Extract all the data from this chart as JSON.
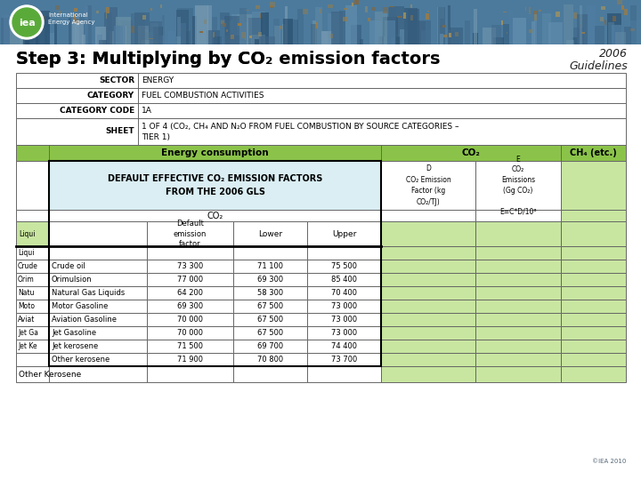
{
  "title_part1": "Step 3: Multiplying by CO",
  "title_co2_sub": "2",
  "title_part2": " emission factors",
  "guidelines_line1": "2006",
  "guidelines_line2": "Guidelines",
  "sector_label": "SECTOR",
  "sector_value": "ENERGY",
  "category_label": "CATEGORY",
  "category_value": "FUEL COMBUSTION ACTIVITIES",
  "cat_code_label": "CATEGORY CODE",
  "cat_code_value": "1A",
  "sheet_label": "SHEET",
  "sheet_value_1": "1 OF 4 (CO₂, CH₄ AND N₂O FROM FUEL COMBUSTION BY SOURCE CATEGORIES –",
  "sheet_value_2": "TIER 1)",
  "green_header_bg": "#8bc34a",
  "light_green": "#c8e6a0",
  "default_box_bg": "#daeef3",
  "col_energy": "Energy consumption",
  "col_co2": "CO₂",
  "col_ch4": "CH₄ (etc.)",
  "col_D_lines": [
    "D",
    "CO₂ Emission",
    "Factor (kg",
    "CO₂/TJ)"
  ],
  "col_E_lines": [
    "E",
    "CO₂",
    "Emissions",
    "(Gg CO₂)",
    "",
    "E=C*D/10⁶"
  ],
  "default_box_lines": [
    "DEFAULT EFFECTIVE CO₂ EMISSION FACTORS",
    "FROM THE 2006 GLS"
  ],
  "co2_sub_header": "CO₂",
  "sub_col_headers": [
    "Default\nemission\nfactor",
    "Lower",
    "Upper"
  ],
  "row_left_labels": [
    "Liqui",
    "Crude",
    "Orim",
    "Natu",
    "Moto",
    "Aviat",
    "Jet Ga",
    "Jet Ke",
    ""
  ],
  "row_sub_labels": [
    "",
    "Crude oil",
    "Orimulsion",
    "Natural Gas Liquids",
    "Motor Gasoline",
    "Aviation Gasoline",
    "Jet Gasoline",
    "Jet kerosene",
    "Other kerosene"
  ],
  "data_rows": [
    [
      "",
      "",
      ""
    ],
    [
      "73 300",
      "71 100",
      "75 500"
    ],
    [
      "77 000",
      "69 300",
      "85 400"
    ],
    [
      "64 200",
      "58 300",
      "70 400"
    ],
    [
      "69 300",
      "67 500",
      "73 000"
    ],
    [
      "70 000",
      "67 500",
      "73 000"
    ],
    [
      "70 000",
      "67 500",
      "73 000"
    ],
    [
      "71 500",
      "69 700",
      "74 400"
    ],
    [
      "71 900",
      "70 800",
      "73 700"
    ]
  ],
  "other_kerosene_label": "Other Kerosene",
  "watermark": "©IEA 2010",
  "header_bg_color": "#5b8db0",
  "header_city_colors": [
    "#7aa8c0",
    "#4a7090",
    "#6090b0",
    "#3a6080",
    "#8ab0c8"
  ],
  "iea_circle_color": "#5aaa3a",
  "iea_text": "iea",
  "iea_info": "International\nEnergy Agency",
  "border_color": "#666666",
  "white": "#ffffff",
  "black": "#000000"
}
